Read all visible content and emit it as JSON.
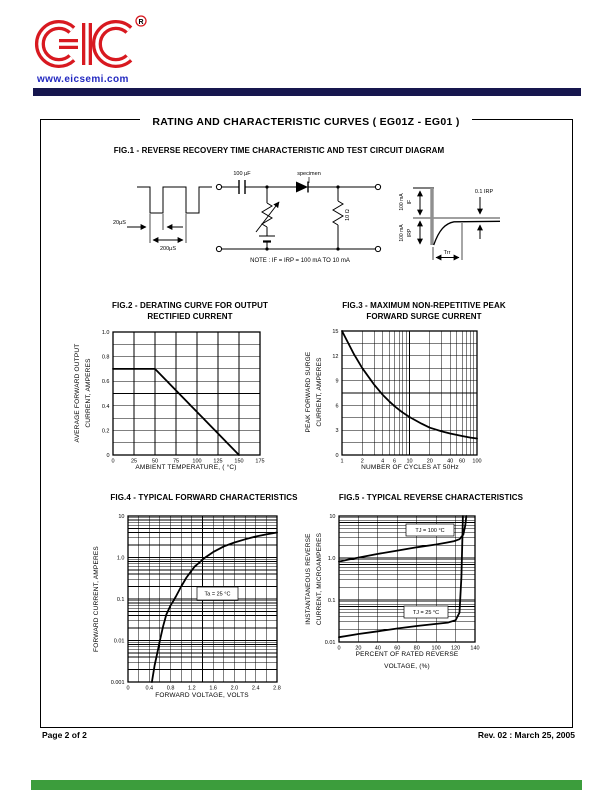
{
  "header": {
    "logo_text": "EIC",
    "registered_mark": "R",
    "website": "www.eicsemi.com",
    "brand_red": "#d81920",
    "link_blue": "#2228c0",
    "navy_bar_color": "#16164e",
    "footer_bar_color": "#3c9d3c"
  },
  "page": {
    "title": "RATING AND CHARACTERISTIC CURVES  ( EG01Z - EG01 )",
    "footer_left": "Page 2 of 2",
    "footer_right": "Rev. 02 : March 25, 2005"
  },
  "fig1": {
    "title": "FIG.1 - REVERSE RECOVERY TIME CHARACTERISTIC AND TEST CIRCUIT DIAGRAM",
    "labels": {
      "pulse_width": "20µS",
      "pulse_period": "200µS",
      "capacitor": "100 µF",
      "specimen": "specimen",
      "load_resistor": "10 Ω",
      "if_current": "100 mA",
      "if_symbol": "IF",
      "irp_current": "100 mA",
      "irp_symbol": "IRP",
      "recovery_level": "0.1 IRP",
      "trr": "Trr",
      "note": "NOTE : IF = IRP = 100 mA  TO  10 mA"
    }
  },
  "fig2": {
    "chart_data": {
      "type": "line",
      "title": "FIG.2 - DERATING CURVE FOR OUTPUT RECTIFIED CURRENT",
      "title_lines": [
        "FIG.2 - DERATING CURVE FOR OUTPUT",
        "RECTIFIED CURRENT"
      ],
      "xlabel": "AMBIENT TEMPERATURE, ( °C)",
      "ylabel": "AVERAGE FORWARD OUTPUT CURRENT, AMPERES",
      "ylabel_lines": [
        "AVERAGE FORWARD OUTPUT",
        "CURRENT, AMPERES"
      ],
      "x_scale": "linear",
      "y_scale": "linear",
      "xlim": [
        0,
        175
      ],
      "ylim": [
        0,
        1.0
      ],
      "x_gridstep": 25,
      "y_gridstep": 0.1,
      "grid": true,
      "legend": "none",
      "xticks": {
        "values": [
          0,
          25,
          50,
          75,
          100,
          125,
          150,
          175
        ],
        "labels": [
          "0",
          "25",
          "50",
          "75",
          "100",
          "125",
          "150",
          "175"
        ]
      },
      "yticks": {
        "values": [
          0,
          0.2,
          0.4,
          0.6,
          0.8,
          1.0
        ],
        "labels": [
          "0",
          "0.2",
          "0.4",
          "0.6",
          "0.8",
          "1.0"
        ]
      },
      "series": [
        {
          "name": "derating curve",
          "points": [
            [
              0,
              0.7
            ],
            [
              50,
              0.7
            ],
            [
              150,
              0
            ]
          ]
        }
      ],
      "annotations": []
    }
  },
  "fig3": {
    "chart_data": {
      "type": "line",
      "title": "FIG.3 - MAXIMUM NON-REPETITIVE PEAK FORWARD SURGE CURRENT",
      "title_lines": [
        "FIG.3 - MAXIMUM NON-REPETITIVE PEAK",
        "FORWARD SURGE CURRENT"
      ],
      "xlabel": "NUMBER OF CYCLES AT 50Hz",
      "ylabel": "PEAK FORWARD SURGE CURRENT, AMPERES",
      "ylabel_lines": [
        "PEAK FORWARD SURGE",
        "CURRENT, AMPERES"
      ],
      "x_scale": "log",
      "y_scale": "linear",
      "xlim": [
        1,
        100
      ],
      "ylim": [
        0,
        15
      ],
      "y_gridstep": 1.5,
      "grid": true,
      "legend": "none",
      "xticks": {
        "values": [
          1,
          2,
          4,
          6,
          10,
          20,
          40,
          60,
          100
        ],
        "labels": [
          "1",
          "2",
          "4",
          "6",
          "10",
          "20",
          "40",
          "60",
          "100"
        ]
      },
      "yticks": {
        "values": [
          0,
          3,
          6,
          9,
          12,
          15
        ],
        "labels": [
          "0",
          "3",
          "6",
          "9",
          "12",
          "15"
        ]
      },
      "series": [
        {
          "name": "surge current",
          "points": [
            [
              1,
              15
            ],
            [
              1.5,
              12.2
            ],
            [
              2,
              10.5
            ],
            [
              3,
              8.5
            ],
            [
              4,
              7.3
            ],
            [
              5,
              6.5
            ],
            [
              6,
              5.9
            ],
            [
              8,
              5.1
            ],
            [
              10,
              4.6
            ],
            [
              15,
              3.8
            ],
            [
              20,
              3.3
            ],
            [
              30,
              2.85
            ],
            [
              40,
              2.6
            ],
            [
              60,
              2.3
            ],
            [
              80,
              2.1
            ],
            [
              100,
              2.0
            ]
          ]
        }
      ],
      "annotations": []
    }
  },
  "fig4": {
    "chart_data": {
      "type": "line",
      "title": "FIG.4 - TYPICAL FORWARD CHARACTERISTICS",
      "xlabel": "FORWARD VOLTAGE, VOLTS",
      "ylabel": "FORWARD CURRENT, AMPERES",
      "x_scale": "linear",
      "y_scale": "log",
      "xlim": [
        0,
        2.8
      ],
      "ylim": [
        0.001,
        10
      ],
      "x_gridstep": 0.2,
      "grid": true,
      "legend": "none",
      "xticks": {
        "values": [
          0,
          0.4,
          0.8,
          1.2,
          1.6,
          2.0,
          2.4,
          2.8
        ],
        "labels": [
          "0",
          "0.4",
          "0.8",
          "1.2",
          "1.6",
          "2.0",
          "2.4",
          "2.8"
        ]
      },
      "yticks": {
        "values": [
          10,
          1,
          0.1,
          0.01,
          0.001
        ],
        "labels": [
          "10",
          "1.0",
          "0.1",
          "0.01",
          "0.001"
        ]
      },
      "series": [
        {
          "name": "forward characteristic",
          "points": [
            [
              0.45,
              0.001
            ],
            [
              0.5,
              0.0025
            ],
            [
              0.55,
              0.005
            ],
            [
              0.6,
              0.01
            ],
            [
              0.66,
              0.022
            ],
            [
              0.72,
              0.042
            ],
            [
              0.8,
              0.07
            ],
            [
              0.9,
              0.115
            ],
            [
              1.0,
              0.2
            ],
            [
              1.1,
              0.33
            ],
            [
              1.25,
              0.6
            ],
            [
              1.45,
              1.0
            ],
            [
              1.6,
              1.35
            ],
            [
              1.8,
              1.85
            ],
            [
              2.0,
              2.3
            ],
            [
              2.2,
              2.75
            ],
            [
              2.4,
              3.2
            ],
            [
              2.6,
              3.6
            ],
            [
              2.8,
              4.0
            ]
          ]
        }
      ],
      "annotations": [
        {
          "text": "Ta = 25 °C"
        }
      ]
    }
  },
  "fig5": {
    "chart_data": {
      "type": "line",
      "title": "FIG.5 - TYPICAL REVERSE CHARACTERISTICS",
      "xlabel": "PERCENT OF RATED REVERSE VOLTAGE, (%)",
      "xlabel_lines": [
        "PERCENT OF RATED REVERSE",
        "VOLTAGE, (%)"
      ],
      "ylabel": "INSTANTANEOUS REVERSE CURRENT, MICROAMPERES",
      "ylabel_lines": [
        "INSTANTANEOUS REVERSE",
        "CURRENT, MICROAMPERES"
      ],
      "x_scale": "linear",
      "y_scale": "log",
      "xlim": [
        0,
        140
      ],
      "ylim": [
        0.01,
        10
      ],
      "x_gridstep": 20,
      "grid": true,
      "legend": "none",
      "xticks": {
        "values": [
          0,
          20,
          40,
          60,
          80,
          100,
          120,
          140
        ],
        "labels": [
          "0",
          "20",
          "40",
          "60",
          "80",
          "100",
          "120",
          "140"
        ]
      },
      "yticks": {
        "values": [
          10,
          1,
          0.1,
          0.01
        ],
        "labels": [
          "10",
          "1.0",
          "0.1",
          "0.01"
        ]
      },
      "series": [
        {
          "name": "TJ = 100 °C",
          "points": [
            [
              0,
              0.82
            ],
            [
              10,
              0.92
            ],
            [
              20,
              1.02
            ],
            [
              40,
              1.25
            ],
            [
              60,
              1.5
            ],
            [
              80,
              1.8
            ],
            [
              100,
              2.1
            ],
            [
              110,
              2.3
            ],
            [
              118,
              2.5
            ],
            [
              124,
              2.8
            ],
            [
              128,
              3.6
            ],
            [
              130,
              6
            ],
            [
              131,
              10
            ]
          ]
        },
        {
          "name": "TJ = 25 °C",
          "points": [
            [
              0,
              0.013
            ],
            [
              20,
              0.0155
            ],
            [
              40,
              0.018
            ],
            [
              60,
              0.021
            ],
            [
              80,
              0.024
            ],
            [
              100,
              0.027
            ],
            [
              112,
              0.029
            ],
            [
              120,
              0.033
            ],
            [
              124,
              0.05
            ],
            [
              126,
              0.35
            ],
            [
              127,
              3
            ],
            [
              127.5,
              10
            ]
          ]
        }
      ],
      "annotations": [
        {
          "text": "TJ = 100 °C"
        },
        {
          "text": "TJ = 25 °C"
        }
      ]
    }
  }
}
